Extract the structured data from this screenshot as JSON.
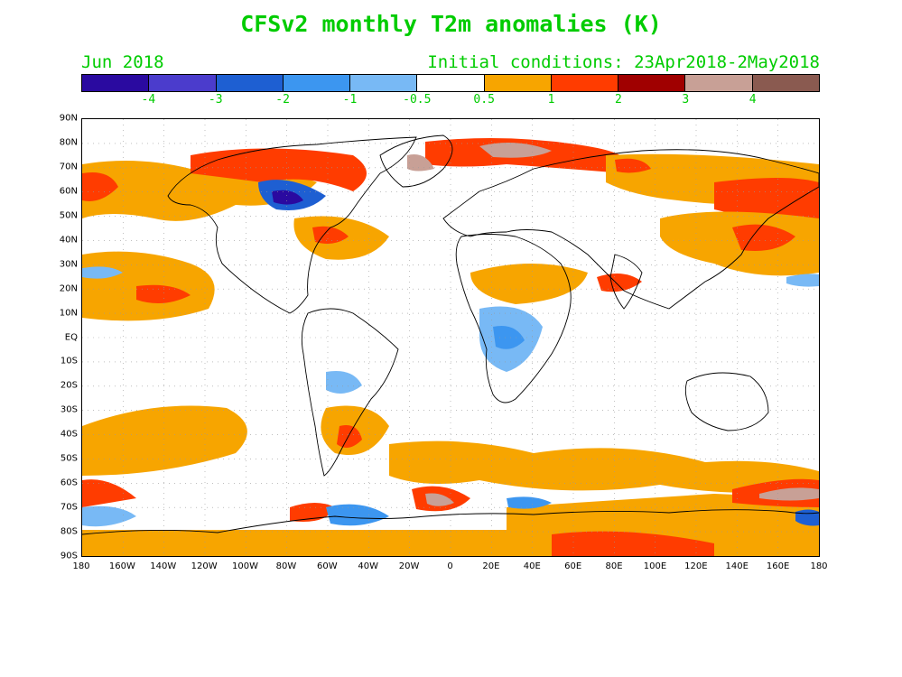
{
  "title": "CFSv2 monthly T2m anomalies (K)",
  "forecast_month": "Jun 2018",
  "initial_conditions": "Initial conditions: 23Apr2018-2May2018",
  "text_color": "#00cc00",
  "colorbar": {
    "colors": [
      "#2a0aa0",
      "#4b3ccc",
      "#1e5fd2",
      "#3c96f0",
      "#78b9f5",
      "#ffffff",
      "#f7a500",
      "#ff3c00",
      "#a00000",
      "#c8a096",
      "#8a5a50"
    ],
    "tick_labels": [
      "-4",
      "-3",
      "-2",
      "-1",
      "-0.5",
      "0.5",
      "1",
      "2",
      "3",
      "4"
    ]
  },
  "map": {
    "lat_labels": [
      "90N",
      "80N",
      "70N",
      "60N",
      "50N",
      "40N",
      "30N",
      "20N",
      "10N",
      "EQ",
      "10S",
      "20S",
      "30S",
      "40S",
      "50S",
      "60S",
      "70S",
      "80S",
      "90S"
    ],
    "lon_labels": [
      "180",
      "160W",
      "140W",
      "120W",
      "100W",
      "80W",
      "60W",
      "40W",
      "20W",
      "0",
      "20E",
      "40E",
      "60E",
      "80E",
      "100E",
      "120E",
      "140E",
      "160E",
      "180"
    ]
  }
}
